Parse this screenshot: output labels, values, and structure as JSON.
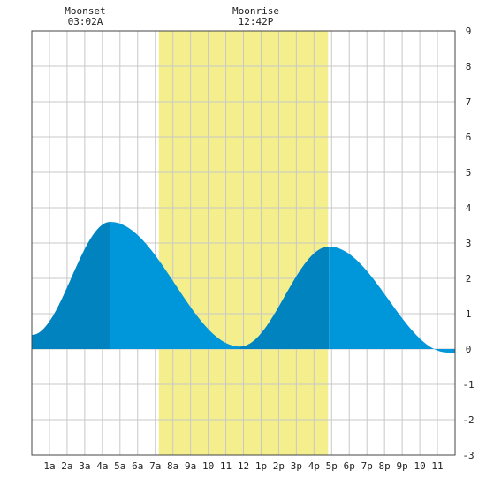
{
  "chart_data": {
    "type": "area",
    "x_ticks": [
      "1a",
      "2a",
      "3a",
      "4a",
      "5a",
      "6a",
      "7a",
      "8a",
      "9a",
      "10",
      "11",
      "12",
      "1p",
      "2p",
      "3p",
      "4p",
      "5p",
      "6p",
      "7p",
      "8p",
      "9p",
      "10",
      "11"
    ],
    "y_ticks": [
      "9",
      "8",
      "7",
      "6",
      "5",
      "4",
      "3",
      "2",
      "1",
      "0",
      "-1",
      "-2",
      "-3"
    ],
    "xlim": [
      0,
      24
    ],
    "ylim": [
      -3,
      9
    ],
    "grid": true,
    "daylight": {
      "start_hour": 7.2,
      "end_hour": 16.8,
      "color": "#f5ee8c"
    },
    "annotations": [
      {
        "title": "Moonset",
        "time": "03:02A",
        "hour": 3.03
      },
      {
        "title": "Moonrise",
        "time": "12:42P",
        "hour": 12.7
      }
    ],
    "tide_extrema": [
      {
        "hour": 0.0,
        "value": 0.4
      },
      {
        "hour": 4.45,
        "value": 3.6
      },
      {
        "hour": 11.8,
        "value": 0.07
      },
      {
        "hour": 16.85,
        "value": 2.9
      },
      {
        "hour": 23.6,
        "value": -0.1
      },
      {
        "hour": 24.0,
        "value": -0.1
      }
    ],
    "colors": {
      "rising": "#0083bf",
      "falling": "#0097da",
      "grid": "#c8c8c8",
      "axis": "#444444"
    }
  }
}
